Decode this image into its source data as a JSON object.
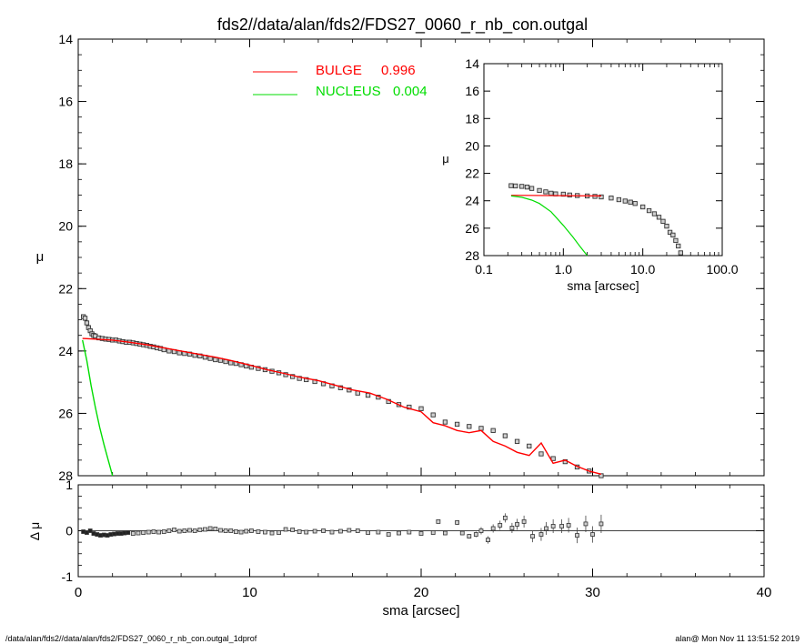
{
  "title": "fds2//data/alan/fds2/FDS27_0060_r_nb_con.outgal",
  "footer": {
    "left": "/data/alan/fds2//data/alan/fds2/FDS27_0060_r_nb_con.outgal_1dprof",
    "right": "alan@  Mon Nov 11 13:51:52 2019"
  },
  "colors": {
    "bulge": "#ff0000",
    "nucleus": "#00dd00",
    "data": "#555555",
    "axes": "#000000"
  },
  "chart_data": [
    {
      "type": "scatter",
      "title": "fds2//data/alan/fds2/FDS27_0060_r_nb_con.outgal",
      "xlabel": "",
      "ylabel": "μ",
      "xlim": [
        0,
        40
      ],
      "ylim": [
        28,
        14
      ],
      "yticks": [
        14,
        16,
        18,
        20,
        22,
        24,
        26,
        28
      ],
      "legend": {
        "placement": "top-center",
        "entries": [
          {
            "label": "BULGE",
            "value": "0.996",
            "color": "#ff0000"
          },
          {
            "label": "NUCLEUS",
            "value": "0.004",
            "color": "#00dd00"
          }
        ]
      },
      "series": [
        {
          "role": "observed",
          "x": [
            0.3,
            0.4,
            0.5,
            0.6,
            0.7,
            0.8,
            0.9,
            1.0,
            1.2,
            1.4,
            1.6,
            1.8,
            2.0,
            2.2,
            2.4,
            2.6,
            2.8,
            3.0,
            3.2,
            3.4,
            3.6,
            3.8,
            4.0,
            4.2,
            4.4,
            4.6,
            4.8,
            5.0,
            5.3,
            5.6,
            5.9,
            6.2,
            6.5,
            6.8,
            7.1,
            7.4,
            7.7,
            8.0,
            8.3,
            8.6,
            8.9,
            9.2,
            9.5,
            9.8,
            10.1,
            10.5,
            10.9,
            11.3,
            11.7,
            12.1,
            12.5,
            12.9,
            13.3,
            13.8,
            14.3,
            14.8,
            15.3,
            15.8,
            16.3,
            16.9,
            17.5,
            18.1,
            18.7,
            19.3,
            20.0,
            20.7,
            21.4,
            22.1,
            22.8,
            23.5,
            24.2,
            24.9,
            25.6,
            26.3,
            27.0,
            27.7,
            28.4,
            29.1,
            29.8,
            30.5
          ],
          "y": [
            22.9,
            22.95,
            23.1,
            23.25,
            23.35,
            23.45,
            23.5,
            23.52,
            23.58,
            23.6,
            23.62,
            23.63,
            23.65,
            23.65,
            23.68,
            23.7,
            23.72,
            23.72,
            23.74,
            23.76,
            23.78,
            23.8,
            23.82,
            23.85,
            23.87,
            23.9,
            23.92,
            23.96,
            24.0,
            24.02,
            24.06,
            24.08,
            24.1,
            24.14,
            24.16,
            24.2,
            24.24,
            24.28,
            24.3,
            24.34,
            24.38,
            24.4,
            24.44,
            24.48,
            24.52,
            24.56,
            24.6,
            24.65,
            24.7,
            24.76,
            24.82,
            24.88,
            24.92,
            24.98,
            25.05,
            25.12,
            25.18,
            25.25,
            25.35,
            25.42,
            25.48,
            25.62,
            25.72,
            25.8,
            25.85,
            26.05,
            26.28,
            26.35,
            26.42,
            26.48,
            26.55,
            26.72,
            26.9,
            27.05,
            27.3,
            27.45,
            27.55,
            27.72,
            27.85,
            28.0
          ]
        },
        {
          "name": "BULGE",
          "color": "#ff0000",
          "x": [
            0.25,
            1,
            2,
            3,
            4,
            5,
            6,
            7,
            8,
            9,
            10,
            11,
            12,
            13,
            14,
            15,
            16,
            17,
            18,
            19,
            20,
            20.7,
            21.4,
            22.1,
            22.8,
            23.5,
            24.2,
            24.9,
            25.6,
            26.3,
            27.0,
            27.7,
            28.4,
            29.1,
            29.8,
            30.5
          ],
          "y": [
            23.6,
            23.62,
            23.65,
            23.72,
            23.8,
            23.9,
            24.0,
            24.1,
            24.2,
            24.32,
            24.45,
            24.6,
            24.72,
            24.85,
            24.95,
            25.1,
            25.25,
            25.35,
            25.55,
            25.8,
            25.95,
            26.3,
            26.4,
            26.55,
            26.62,
            26.55,
            26.9,
            27.05,
            27.25,
            27.35,
            26.95,
            27.6,
            27.5,
            27.7,
            27.85,
            27.95
          ]
        },
        {
          "name": "NUCLEUS",
          "color": "#00dd00",
          "x": [
            0.25,
            0.5,
            0.75,
            1.0,
            1.25,
            1.5,
            1.75,
            2.0
          ],
          "y": [
            23.65,
            24.3,
            25.1,
            25.8,
            26.45,
            27.0,
            27.5,
            28.0
          ]
        }
      ]
    },
    {
      "type": "scatter",
      "inset": true,
      "xlabel": "sma [arcsec]",
      "ylabel": "μ",
      "xscale": "log",
      "xlim": [
        0.1,
        100
      ],
      "xticks": [
        "0.1",
        "1.0",
        "10.0",
        "100.0"
      ],
      "ylim": [
        28,
        14
      ],
      "yticks": [
        14,
        16,
        18,
        20,
        22,
        24,
        26,
        28
      ],
      "series": [
        {
          "role": "observed",
          "x": [
            0.22,
            0.25,
            0.3,
            0.35,
            0.4,
            0.5,
            0.6,
            0.7,
            0.8,
            1.0,
            1.2,
            1.5,
            2.0,
            2.5,
            3.0,
            4.0,
            5.0,
            6.0,
            7.0,
            8.0,
            10.0,
            12.0,
            14.0,
            16.0,
            18.0,
            20.0,
            22.0,
            24.0,
            26.0,
            28.0,
            30.0
          ],
          "y": [
            22.9,
            22.92,
            22.95,
            23.0,
            23.1,
            23.25,
            23.35,
            23.45,
            23.5,
            23.52,
            23.58,
            23.62,
            23.65,
            23.68,
            23.72,
            23.8,
            23.92,
            24.02,
            24.1,
            24.2,
            24.45,
            24.72,
            24.95,
            25.2,
            25.5,
            25.85,
            26.3,
            26.5,
            26.9,
            27.3,
            27.8
          ]
        },
        {
          "name": "BULGE",
          "color": "#ff0000",
          "x": [
            0.22,
            3.0
          ],
          "y": [
            23.6,
            23.65
          ]
        },
        {
          "name": "NUCLEUS",
          "color": "#00dd00",
          "x": [
            0.22,
            0.3,
            0.4,
            0.5,
            0.7,
            1.0,
            1.3,
            1.6,
            2.0
          ],
          "y": [
            23.65,
            23.75,
            23.95,
            24.2,
            24.8,
            25.8,
            26.6,
            27.3,
            28.0
          ]
        }
      ]
    },
    {
      "type": "scatter",
      "xlabel": "sma [arcsec]",
      "ylabel": "Δ μ",
      "xlim": [
        0,
        40
      ],
      "xticks": [
        0,
        10,
        20,
        30,
        40
      ],
      "ylim": [
        -1,
        1
      ],
      "yticks": [
        -1,
        0,
        1
      ],
      "series": [
        {
          "role": "residual",
          "x": [
            0.3,
            0.5,
            0.7,
            0.9,
            1.1,
            1.3,
            1.5,
            1.7,
            1.9,
            2.1,
            2.3,
            2.5,
            2.7,
            2.9,
            3.2,
            3.5,
            3.8,
            4.1,
            4.4,
            4.7,
            5.0,
            5.3,
            5.6,
            5.9,
            6.2,
            6.5,
            6.8,
            7.1,
            7.4,
            7.7,
            8.0,
            8.3,
            8.6,
            8.9,
            9.2,
            9.5,
            9.8,
            10.1,
            10.5,
            10.9,
            11.3,
            11.7,
            12.1,
            12.5,
            12.9,
            13.3,
            13.8,
            14.3,
            14.8,
            15.3,
            15.8,
            16.3,
            16.9,
            17.5,
            18.1,
            18.7,
            19.3,
            20.0,
            20.7,
            21.0,
            21.4,
            22.1,
            22.4,
            22.8,
            23.2,
            23.5,
            23.9,
            24.2,
            24.6,
            24.9,
            25.3,
            25.6,
            26.0,
            26.5,
            27.0,
            27.3,
            27.7,
            28.2,
            28.6,
            29.1,
            29.6,
            30.0,
            30.5
          ],
          "y": [
            -0.02,
            -0.04,
            0.0,
            -0.06,
            -0.08,
            -0.1,
            -0.09,
            -0.1,
            -0.08,
            -0.07,
            -0.06,
            -0.06,
            -0.05,
            -0.04,
            -0.06,
            -0.05,
            -0.04,
            -0.03,
            -0.02,
            -0.03,
            -0.02,
            0.0,
            0.02,
            -0.01,
            0.0,
            0.01,
            0.0,
            0.02,
            0.03,
            0.05,
            0.04,
            0.01,
            0.0,
            0.0,
            -0.02,
            -0.03,
            -0.01,
            0.0,
            -0.02,
            -0.03,
            -0.05,
            -0.04,
            0.03,
            0.02,
            -0.02,
            -0.03,
            -0.01,
            0.0,
            -0.03,
            -0.01,
            0.01,
            0.0,
            -0.04,
            -0.03,
            -0.08,
            -0.05,
            -0.03,
            -0.06,
            -0.04,
            0.2,
            -0.05,
            0.18,
            -0.05,
            -0.12,
            -0.08,
            0.0,
            -0.2,
            0.05,
            0.12,
            0.28,
            0.06,
            0.14,
            0.2,
            -0.12,
            -0.08,
            0.05,
            0.1,
            0.1,
            0.12,
            -0.1,
            0.15,
            -0.08,
            0.15
          ],
          "err": [
            0,
            0,
            0,
            0,
            0,
            0,
            0,
            0,
            0,
            0,
            0,
            0,
            0,
            0,
            0,
            0,
            0,
            0,
            0,
            0,
            0,
            0,
            0,
            0,
            0,
            0,
            0,
            0,
            0,
            0,
            0,
            0,
            0,
            0,
            0,
            0,
            0,
            0,
            0,
            0,
            0,
            0,
            0,
            0,
            0,
            0,
            0,
            0,
            0,
            0,
            0,
            0,
            0,
            0,
            0,
            0,
            0,
            0,
            0,
            0.04,
            0,
            0.05,
            0,
            0.05,
            0.06,
            0.08,
            0.08,
            0.09,
            0.1,
            0.1,
            0.11,
            0.12,
            0.13,
            0.13,
            0.14,
            0.14,
            0.15,
            0.15,
            0.16,
            0.17,
            0.18,
            0.18,
            0.2
          ]
        }
      ]
    }
  ]
}
